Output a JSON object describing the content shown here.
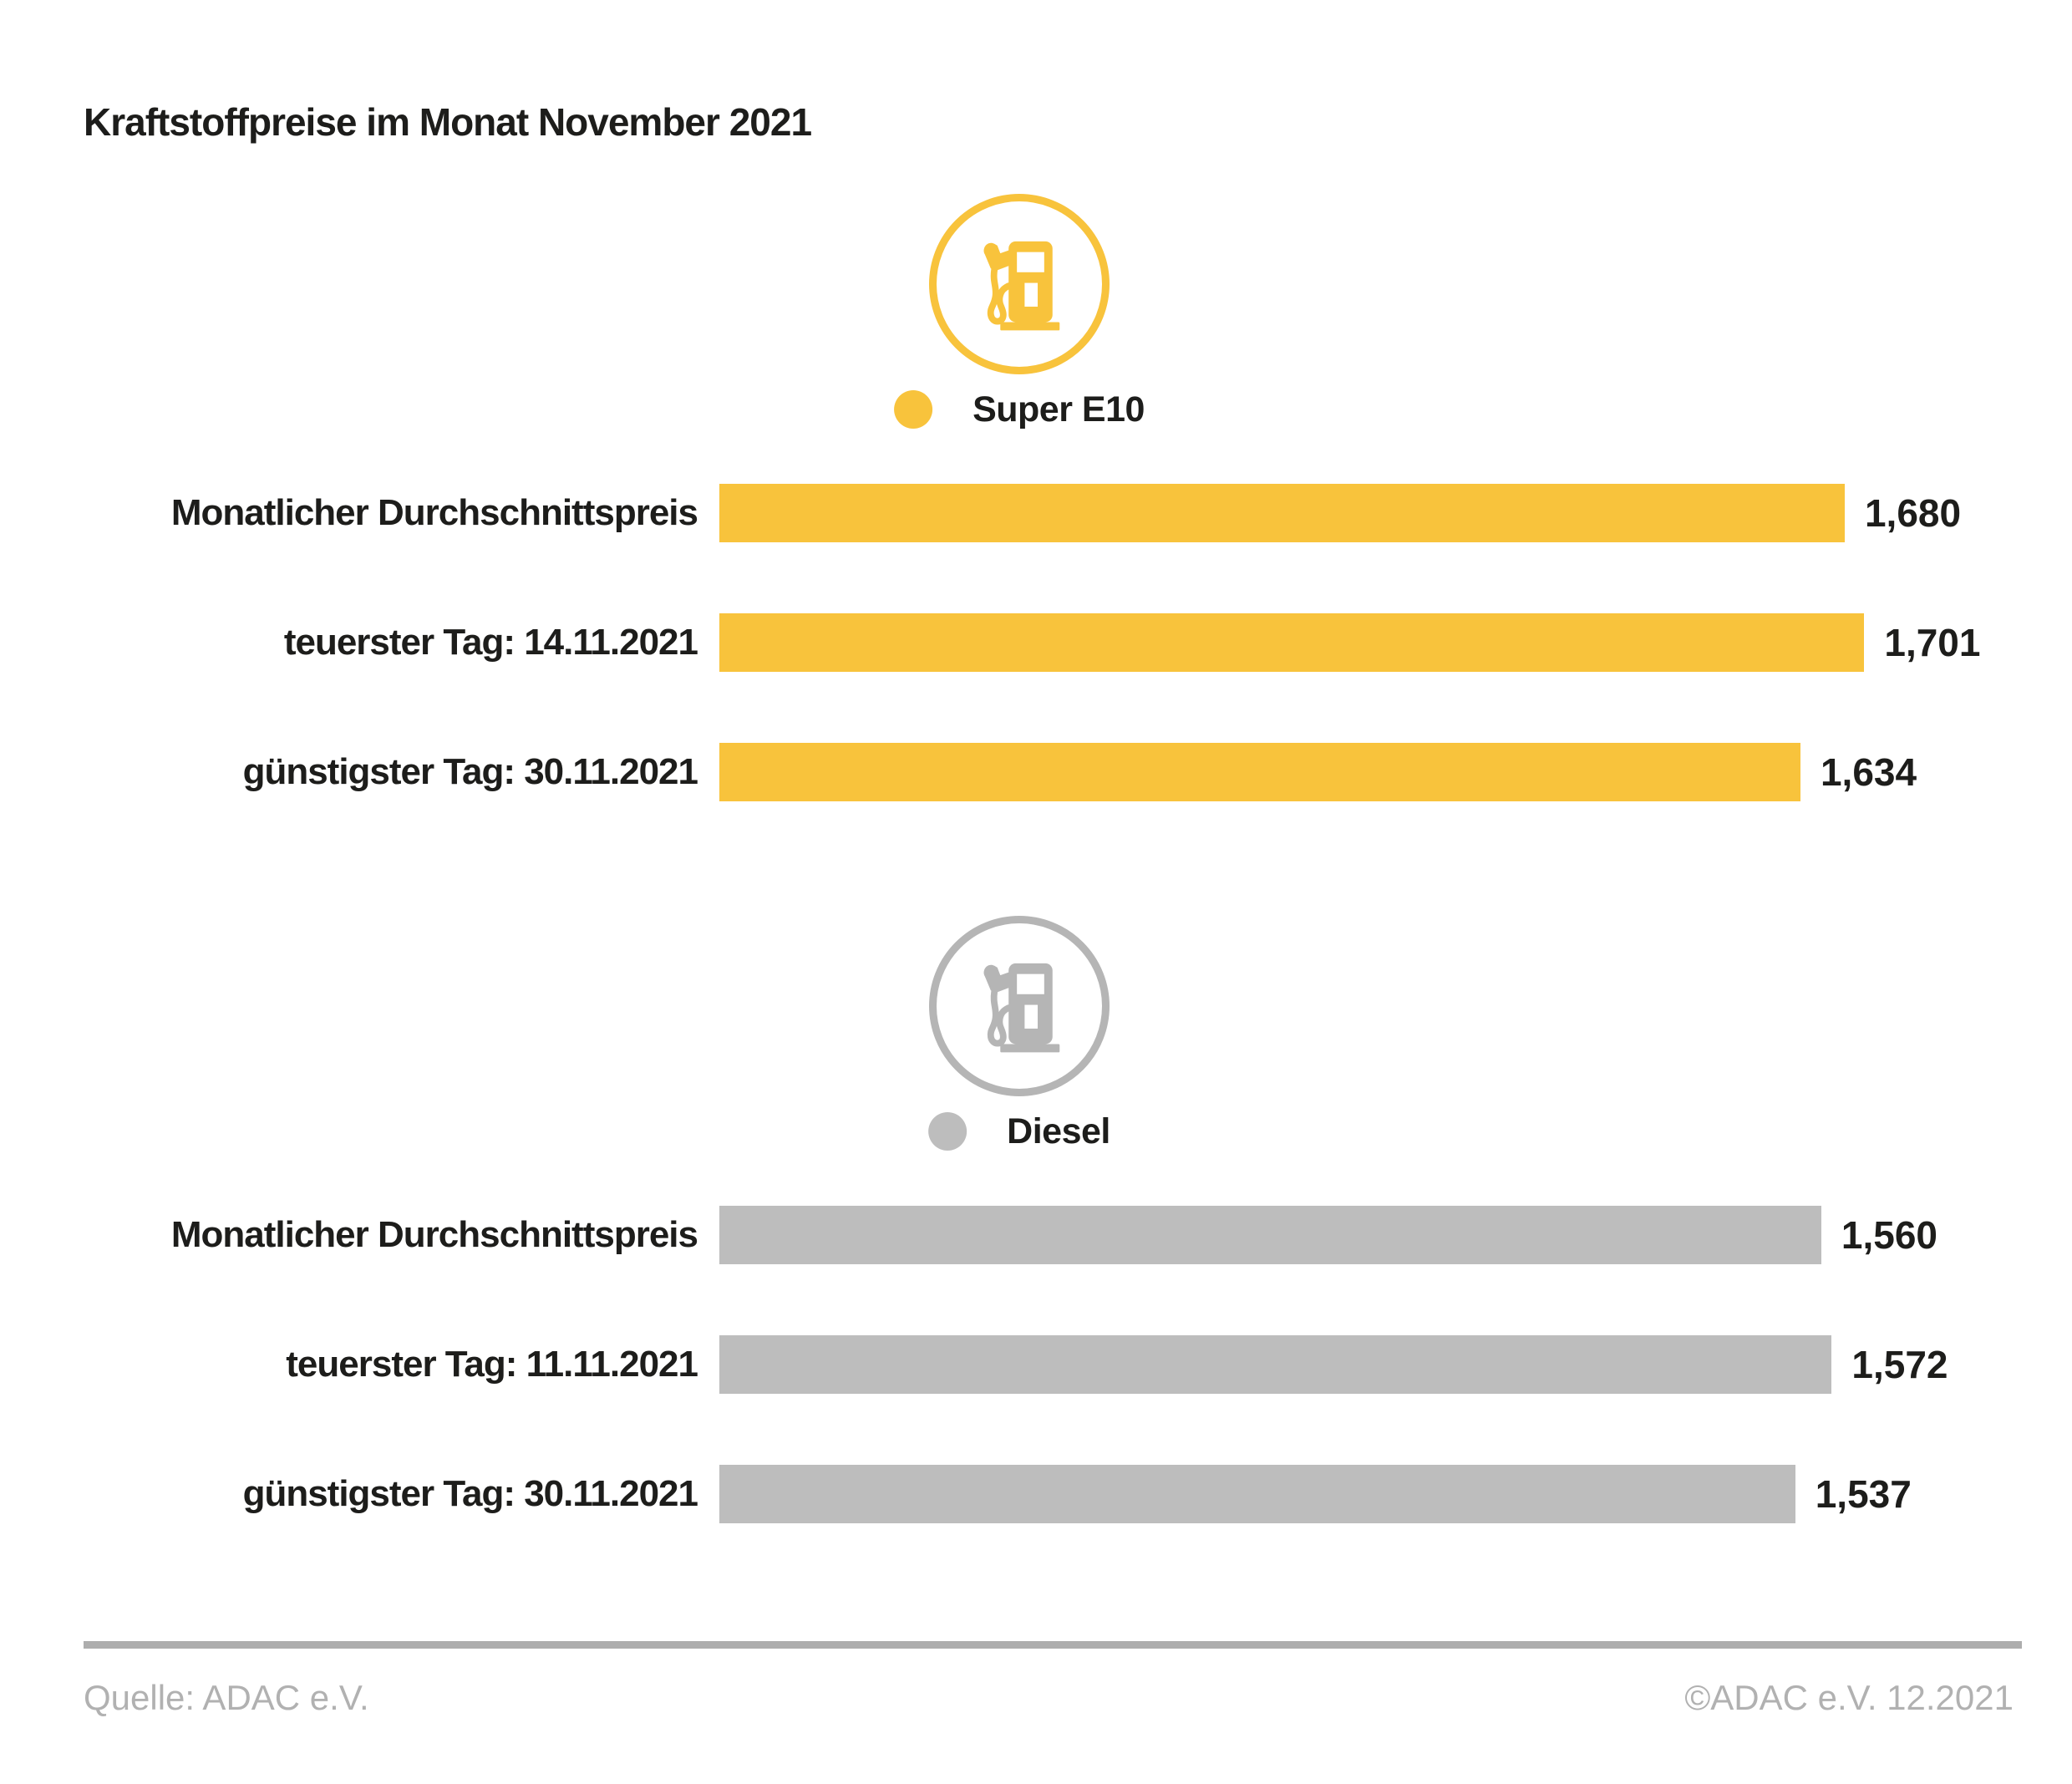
{
  "title": "Kraftstoffpreise im Monat November 2021",
  "colors": {
    "super_e10": "#F8C33C",
    "diesel_bar": "#BDBDBD",
    "diesel_icon": "#B5B5B5",
    "text": "#1D1D1B",
    "footer_text": "#B1B1B1",
    "divider": "#ADADAD"
  },
  "footer": {
    "source": "Quelle: ADAC e.V.",
    "copyright": "©ADAC e.V. 12.2021"
  },
  "chart_data": {
    "type": "bar",
    "orientation": "horizontal",
    "title": "Kraftstoffpreise im Monat November 2021",
    "grid": false,
    "legend_position": "above-each-section",
    "sections": [
      {
        "name": "Super E10",
        "icon": "fuel-pump-icon",
        "bar_color": "#F8C33C",
        "icon_color": "#F8C33C",
        "categories": [
          "Monatlicher Durchschnittspreis",
          "teuerster Tag: 14.11.2021",
          "günstigster Tag: 30.11.2021"
        ],
        "rows": [
          {
            "label": "Monatlicher Durchschnittspreis",
            "value": 1.68,
            "value_label": "1,680",
            "bar_pct": 86.4
          },
          {
            "label": "teuerster Tag: 14.11.2021",
            "value": 1.701,
            "value_label": "1,701",
            "bar_pct": 87.9
          },
          {
            "label": "günstigster Tag: 30.11.2021",
            "value": 1.634,
            "value_label": "1,634",
            "bar_pct": 83.0
          }
        ]
      },
      {
        "name": "Diesel",
        "icon": "fuel-pump-icon",
        "bar_color": "#BDBDBD",
        "icon_color": "#B5B5B5",
        "categories": [
          "Monatlicher Durchschnittspreis",
          "teuerster Tag: 11.11.2021",
          "günstigster Tag: 30.11.2021"
        ],
        "rows": [
          {
            "label": "Monatlicher Durchschnittspreis",
            "value": 1.56,
            "value_label": "1,560",
            "bar_pct": 84.6
          },
          {
            "label": "teuerster Tag: 11.11.2021",
            "value": 1.572,
            "value_label": "1,572",
            "bar_pct": 85.4
          },
          {
            "label": "günstigster Tag: 30.11.2021",
            "value": 1.537,
            "value_label": "1,537",
            "bar_pct": 82.6
          }
        ]
      }
    ]
  }
}
